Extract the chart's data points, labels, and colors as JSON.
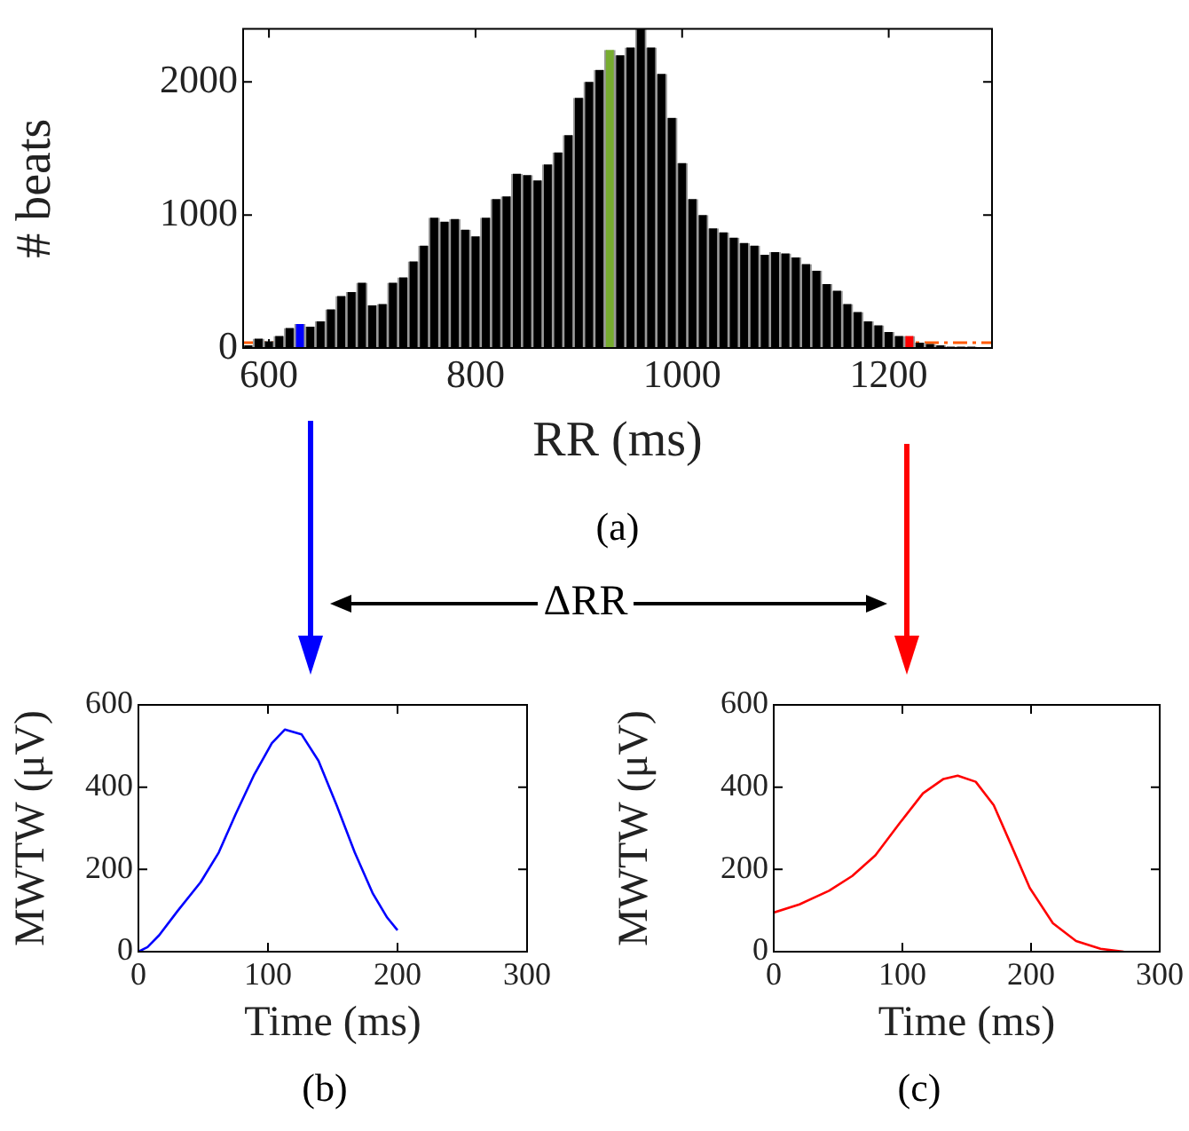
{
  "chart_data": [
    {
      "type": "histogram",
      "xlabel": "RR (ms)",
      "ylabel": "# beats",
      "bins": [
        575,
        585,
        595,
        605,
        615,
        625,
        635,
        645,
        655,
        665,
        675,
        685,
        695,
        705,
        715,
        725,
        735,
        745,
        755,
        765,
        775,
        785,
        795,
        805,
        815,
        825,
        835,
        845,
        855,
        865,
        875,
        885,
        895,
        905,
        915,
        925,
        935,
        945,
        955,
        965,
        975,
        985,
        995,
        1005,
        1015,
        1025,
        1035,
        1045,
        1055,
        1065,
        1075,
        1085,
        1095,
        1105,
        1115,
        1125,
        1135,
        1145,
        1155,
        1165,
        1175,
        1185,
        1195,
        1205,
        1215,
        1225,
        1235,
        1245,
        1255,
        1265,
        1275,
        1285
      ],
      "values": [
        20,
        70,
        50,
        90,
        150,
        180,
        160,
        200,
        290,
        390,
        420,
        490,
        320,
        330,
        490,
        530,
        650,
        770,
        980,
        950,
        970,
        890,
        840,
        980,
        1120,
        1140,
        1310,
        1300,
        1260,
        1380,
        1470,
        1600,
        1880,
        2000,
        2090,
        2240,
        2200,
        2260,
        2400,
        2260,
        2060,
        1730,
        1390,
        1120,
        1000,
        900,
        870,
        830,
        790,
        770,
        700,
        720,
        710,
        680,
        630,
        580,
        480,
        430,
        330,
        270,
        200,
        170,
        120,
        90,
        90,
        40,
        30,
        20,
        10,
        10,
        10
      ],
      "colors": [
        "#000000",
        "#000000",
        "#000000",
        "#000000",
        "#000000",
        "#0000ff",
        "#000000",
        "#000000",
        "#000000",
        "#000000",
        "#000000",
        "#000000",
        "#000000",
        "#000000",
        "#000000",
        "#000000",
        "#000000",
        "#000000",
        "#000000",
        "#000000",
        "#000000",
        "#000000",
        "#000000",
        "#000000",
        "#000000",
        "#000000",
        "#000000",
        "#000000",
        "#000000",
        "#000000",
        "#000000",
        "#000000",
        "#000000",
        "#000000",
        "#000000",
        "#77ac30",
        "#000000",
        "#000000",
        "#000000",
        "#000000",
        "#000000",
        "#000000",
        "#000000",
        "#000000",
        "#000000",
        "#000000",
        "#000000",
        "#000000",
        "#000000",
        "#000000",
        "#000000",
        "#000000",
        "#000000",
        "#000000",
        "#000000",
        "#000000",
        "#000000",
        "#000000",
        "#000000",
        "#000000",
        "#000000",
        "#000000",
        "#000000",
        "#000000",
        "#ff0000",
        "#000000",
        "#000000",
        "#000000",
        "#000000",
        "#000000",
        "#000000"
      ],
      "xlim": [
        575,
        1300
      ],
      "xticks": [
        600,
        800,
        1000,
        1200
      ],
      "ylim": [
        0,
        2400
      ],
      "yticks": [
        0,
        1000,
        2000
      ],
      "ref_lines": [
        {
          "axis": "y",
          "value": 40,
          "color": "#ff5a00",
          "line_style": "dashed"
        }
      ],
      "annotations": [
        "(a)",
        "ΔRR"
      ]
    },
    {
      "type": "line",
      "xlabel": "Time (ms)",
      "ylabel": "MWTW (μV)",
      "xlim": [
        0,
        300
      ],
      "xticks": [
        0,
        100,
        200,
        300
      ],
      "ylim": [
        0,
        600
      ],
      "yticks": [
        0,
        200,
        400,
        600
      ],
      "series": [
        {
          "color": "#0000ff",
          "x": [
            0,
            7,
            16,
            30,
            48,
            62,
            75,
            89,
            103,
            113,
            126,
            139,
            153,
            167,
            181,
            192,
            200
          ],
          "values": [
            0,
            11,
            40,
            98,
            169,
            241,
            334,
            428,
            507,
            540,
            528,
            464,
            356,
            241,
            141,
            83,
            52
          ]
        }
      ],
      "annotations": [
        "(b)"
      ]
    },
    {
      "type": "line",
      "xlabel": "Time (ms)",
      "ylabel": "MWTW (μV)",
      "xlim": [
        0,
        300
      ],
      "xticks": [
        0,
        100,
        200,
        300
      ],
      "ylim": [
        0,
        600
      ],
      "yticks": [
        0,
        200,
        400,
        600
      ],
      "series": [
        {
          "color": "#ff0000",
          "x": [
            0,
            20,
            43,
            61,
            79,
            98,
            116,
            132,
            143,
            157,
            171,
            185,
            199,
            217,
            235,
            254,
            272
          ],
          "values": [
            95,
            115,
            148,
            184,
            234,
            313,
            385,
            420,
            428,
            413,
            356,
            256,
            155,
            69,
            26,
            7,
            0
          ]
        }
      ],
      "annotations": [
        "(c)"
      ]
    }
  ]
}
